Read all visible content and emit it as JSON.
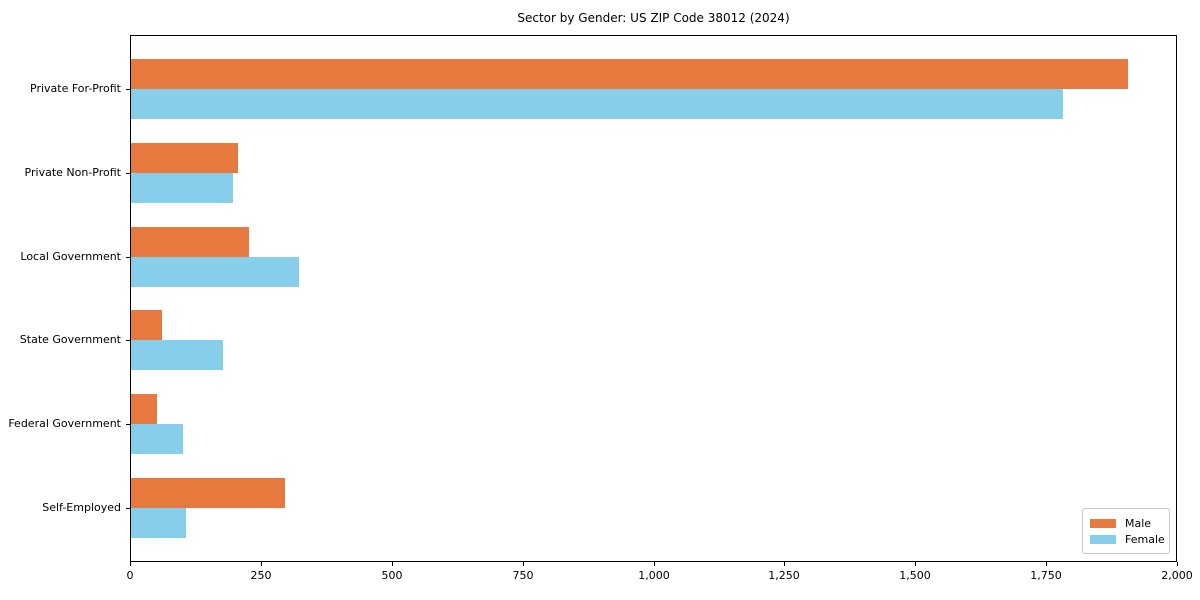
{
  "chart_data": {
    "type": "bar",
    "orientation": "horizontal",
    "title": "Sector by Gender: US ZIP Code 38012 (2024)",
    "categories": [
      "Private For-Profit",
      "Private Non-Profit",
      "Local Government",
      "State Government",
      "Federal Government",
      "Self-Employed"
    ],
    "series": [
      {
        "name": "Male",
        "color": "#e8793e",
        "values": [
          1905,
          205,
          225,
          60,
          50,
          295
        ]
      },
      {
        "name": "Female",
        "color": "#87ceeb",
        "values": [
          1780,
          195,
          320,
          175,
          100,
          105
        ]
      }
    ],
    "xlabel": "",
    "ylabel": "",
    "xlim": [
      0,
      2000
    ],
    "x_ticks": [
      0,
      250,
      500,
      750,
      1000,
      1250,
      1500,
      1750,
      2000
    ],
    "x_tick_labels": [
      "0",
      "250",
      "500",
      "750",
      "1,000",
      "1,250",
      "1,500",
      "1,750",
      "2,000"
    ],
    "legend": {
      "position": "lower right",
      "entries": [
        "Male",
        "Female"
      ]
    },
    "grid": false,
    "axis_color": "#000000",
    "background": "#ffffff"
  }
}
